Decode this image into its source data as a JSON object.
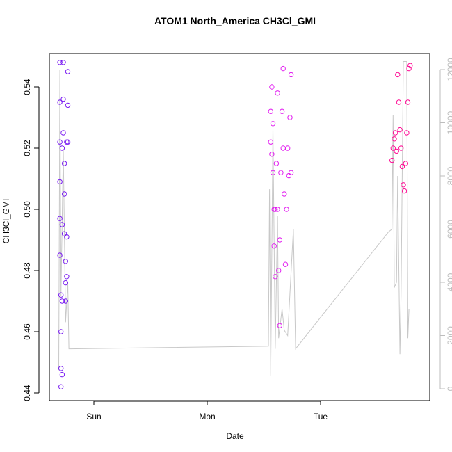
{
  "chart_data": {
    "type": "scatter",
    "title": "ATOM1 North_America CH3Cl_GMI",
    "xlabel": "Date",
    "ylabel": "CH3Cl_GMI",
    "x_ticks": [
      "Sun",
      "Mon",
      "Tue"
    ],
    "y_ticks": [
      "0.44",
      "0.46",
      "0.48",
      "0.50",
      "0.52",
      "0.54"
    ],
    "ylim": [
      0.44,
      0.55
    ],
    "y2_ticks": [
      "0",
      "2000",
      "4000",
      "6000",
      "8000",
      "10000",
      "12000"
    ],
    "y2lim": [
      0,
      12500
    ],
    "marker": "open-circle",
    "colors": {
      "cluster1": "#7a1cf2",
      "cluster2": "#e21ef0",
      "cluster3": "#ff0a94",
      "altitude_line": "#c8c8c8"
    },
    "series": [
      {
        "values": [
          {
            "x": -0.3,
            "y": 0.548
          },
          {
            "x": -0.3,
            "y": 0.535
          },
          {
            "x": -0.3,
            "y": 0.522
          },
          {
            "x": -0.3,
            "y": 0.509
          },
          {
            "x": -0.3,
            "y": 0.497
          },
          {
            "x": -0.3,
            "y": 0.485
          },
          {
            "x": -0.29,
            "y": 0.472
          },
          {
            "x": -0.29,
            "y": 0.46
          },
          {
            "x": -0.29,
            "y": 0.448
          },
          {
            "x": -0.29,
            "y": 0.442
          },
          {
            "x": -0.28,
            "y": 0.446
          },
          {
            "x": -0.28,
            "y": 0.47
          },
          {
            "x": -0.28,
            "y": 0.495
          },
          {
            "x": -0.28,
            "y": 0.52
          },
          {
            "x": -0.27,
            "y": 0.548
          },
          {
            "x": -0.27,
            "y": 0.536
          },
          {
            "x": -0.27,
            "y": 0.525
          },
          {
            "x": -0.26,
            "y": 0.515
          },
          {
            "x": -0.26,
            "y": 0.505
          },
          {
            "x": -0.26,
            "y": 0.492
          },
          {
            "x": -0.25,
            "y": 0.483
          },
          {
            "x": -0.25,
            "y": 0.476
          },
          {
            "x": -0.25,
            "y": 0.47
          },
          {
            "x": -0.24,
            "y": 0.478
          },
          {
            "x": -0.24,
            "y": 0.491
          },
          {
            "x": -0.24,
            "y": 0.522
          },
          {
            "x": -0.23,
            "y": 0.534
          },
          {
            "x": -0.23,
            "y": 0.522
          },
          {
            "x": -0.23,
            "y": 0.545
          }
        ]
      },
      {
        "values": [
          {
            "x": 1.56,
            "y": 0.522
          },
          {
            "x": 1.56,
            "y": 0.532
          },
          {
            "x": 1.57,
            "y": 0.518
          },
          {
            "x": 1.57,
            "y": 0.54
          },
          {
            "x": 1.58,
            "y": 0.528
          },
          {
            "x": 1.58,
            "y": 0.512
          },
          {
            "x": 1.59,
            "y": 0.5
          },
          {
            "x": 1.59,
            "y": 0.488
          },
          {
            "x": 1.6,
            "y": 0.478
          },
          {
            "x": 1.6,
            "y": 0.5
          },
          {
            "x": 1.61,
            "y": 0.515
          },
          {
            "x": 1.62,
            "y": 0.538
          },
          {
            "x": 1.62,
            "y": 0.5
          },
          {
            "x": 1.63,
            "y": 0.48
          },
          {
            "x": 1.64,
            "y": 0.462
          },
          {
            "x": 1.64,
            "y": 0.49
          },
          {
            "x": 1.65,
            "y": 0.512
          },
          {
            "x": 1.66,
            "y": 0.532
          },
          {
            "x": 1.67,
            "y": 0.546
          },
          {
            "x": 1.67,
            "y": 0.52
          },
          {
            "x": 1.68,
            "y": 0.505
          },
          {
            "x": 1.69,
            "y": 0.482
          },
          {
            "x": 1.7,
            "y": 0.5
          },
          {
            "x": 1.71,
            "y": 0.52
          },
          {
            "x": 1.72,
            "y": 0.511
          },
          {
            "x": 1.73,
            "y": 0.53
          },
          {
            "x": 1.74,
            "y": 0.544
          },
          {
            "x": 1.74,
            "y": 0.512
          }
        ]
      },
      {
        "values": [
          {
            "x": 2.63,
            "y": 0.516
          },
          {
            "x": 2.64,
            "y": 0.52
          },
          {
            "x": 2.65,
            "y": 0.523
          },
          {
            "x": 2.66,
            "y": 0.525
          },
          {
            "x": 2.67,
            "y": 0.519
          },
          {
            "x": 2.68,
            "y": 0.544
          },
          {
            "x": 2.69,
            "y": 0.535
          },
          {
            "x": 2.7,
            "y": 0.526
          },
          {
            "x": 2.71,
            "y": 0.52
          },
          {
            "x": 2.72,
            "y": 0.514
          },
          {
            "x": 2.73,
            "y": 0.508
          },
          {
            "x": 2.74,
            "y": 0.506
          },
          {
            "x": 2.75,
            "y": 0.515
          },
          {
            "x": 2.76,
            "y": 0.525
          },
          {
            "x": 2.77,
            "y": 0.535
          },
          {
            "x": 2.78,
            "y": 0.546
          },
          {
            "x": 2.79,
            "y": 0.547
          }
        ]
      }
    ],
    "altitude": [
      {
        "x": -0.31,
        "y": 700
      },
      {
        "x": -0.3,
        "y": 12000
      },
      {
        "x": -0.29,
        "y": 3500
      },
      {
        "x": -0.27,
        "y": 9000
      },
      {
        "x": -0.25,
        "y": 2500
      },
      {
        "x": -0.23,
        "y": 4000
      },
      {
        "x": -0.22,
        "y": 1500
      },
      {
        "x": -0.21,
        "y": 1500
      },
      {
        "x": 1.54,
        "y": 1600
      },
      {
        "x": 1.55,
        "y": 7500
      },
      {
        "x": 1.56,
        "y": 500
      },
      {
        "x": 1.58,
        "y": 9800
      },
      {
        "x": 1.6,
        "y": 1500
      },
      {
        "x": 1.62,
        "y": 6500
      },
      {
        "x": 1.63,
        "y": 1900
      },
      {
        "x": 1.66,
        "y": 3000
      },
      {
        "x": 1.68,
        "y": 2200
      },
      {
        "x": 1.71,
        "y": 2000
      },
      {
        "x": 1.73,
        "y": 3600
      },
      {
        "x": 1.76,
        "y": 6000
      },
      {
        "x": 1.78,
        "y": 1500
      },
      {
        "x": 2.6,
        "y": 5900
      },
      {
        "x": 2.63,
        "y": 6000
      },
      {
        "x": 2.64,
        "y": 10300
      },
      {
        "x": 2.65,
        "y": 3800
      },
      {
        "x": 2.67,
        "y": 4000
      },
      {
        "x": 2.68,
        "y": 8000
      },
      {
        "x": 2.7,
        "y": 1300
      },
      {
        "x": 2.71,
        "y": 3500
      },
      {
        "x": 2.73,
        "y": 12300
      },
      {
        "x": 2.76,
        "y": 12300
      },
      {
        "x": 2.77,
        "y": 1900
      },
      {
        "x": 2.78,
        "y": 3000
      }
    ]
  }
}
